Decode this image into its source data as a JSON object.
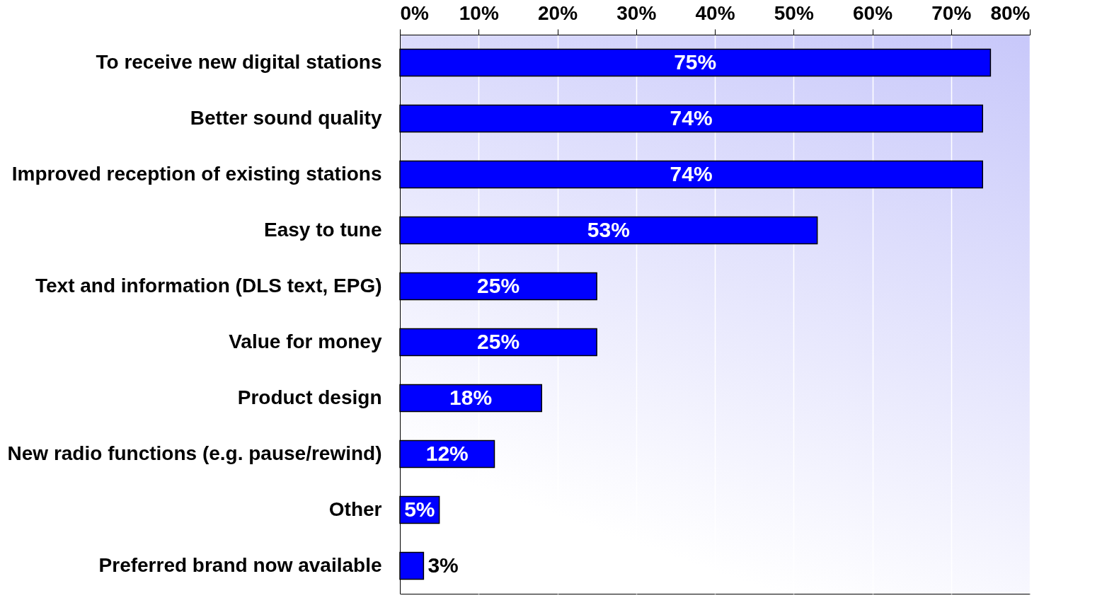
{
  "chart_data": {
    "type": "bar",
    "orientation": "horizontal",
    "categories": [
      "To receive new digital stations",
      "Better sound quality",
      "Improved reception of existing stations",
      "Easy to tune",
      "Text and information (DLS text, EPG)",
      "Value for money",
      "Product design",
      "New radio functions (e.g. pause/rewind)",
      "Other",
      "Preferred brand now available"
    ],
    "values": [
      75,
      74,
      74,
      53,
      25,
      25,
      18,
      12,
      5,
      3
    ],
    "value_labels": [
      "75%",
      "74%",
      "74%",
      "53%",
      "25%",
      "25%",
      "18%",
      "12%",
      "5%",
      "3%"
    ],
    "color": "#0000ff",
    "xlim": [
      0,
      80
    ],
    "xticks": [
      {
        "value": 0,
        "label": "0%"
      },
      {
        "value": 10,
        "label": "10%"
      },
      {
        "value": 20,
        "label": "20%"
      },
      {
        "value": 30,
        "label": "30%"
      },
      {
        "value": 40,
        "label": "40%"
      },
      {
        "value": 50,
        "label": "50%"
      },
      {
        "value": 60,
        "label": "60%"
      },
      {
        "value": 70,
        "label": "70%"
      },
      {
        "value": 80,
        "label": "80%"
      }
    ],
    "grid": "x"
  }
}
